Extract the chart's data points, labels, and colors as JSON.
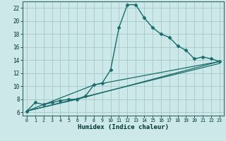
{
  "xlabel": "Humidex (Indice chaleur)",
  "bg_color": "#cce8e8",
  "grid_color": "#aacccc",
  "line_color": "#1a6b6b",
  "xlim": [
    -0.5,
    23.5
  ],
  "ylim": [
    5.5,
    23.0
  ],
  "yticks": [
    6,
    8,
    10,
    12,
    14,
    16,
    18,
    20,
    22
  ],
  "xticks": [
    0,
    1,
    2,
    3,
    4,
    5,
    6,
    7,
    8,
    9,
    10,
    11,
    12,
    13,
    14,
    15,
    16,
    17,
    18,
    19,
    20,
    21,
    22,
    23
  ],
  "series1_x": [
    0,
    1,
    2,
    3,
    4,
    5,
    6,
    7,
    8,
    9,
    10,
    11,
    12,
    13,
    14,
    15,
    16,
    17,
    18,
    19,
    20,
    21,
    22,
    23
  ],
  "series1_y": [
    6.2,
    7.5,
    7.2,
    7.5,
    7.8,
    8.0,
    8.0,
    8.5,
    10.2,
    10.5,
    12.5,
    19.0,
    22.5,
    22.5,
    20.5,
    19.0,
    18.0,
    17.5,
    16.2,
    15.5,
    14.2,
    14.5,
    14.2,
    13.8
  ],
  "series2_x": [
    0,
    23
  ],
  "series2_y": [
    6.2,
    13.5
  ],
  "series3_x": [
    0,
    6,
    23
  ],
  "series3_y": [
    6.2,
    8.0,
    13.8
  ],
  "series4_x": [
    0,
    8,
    23
  ],
  "series4_y": [
    6.2,
    10.2,
    13.8
  ]
}
